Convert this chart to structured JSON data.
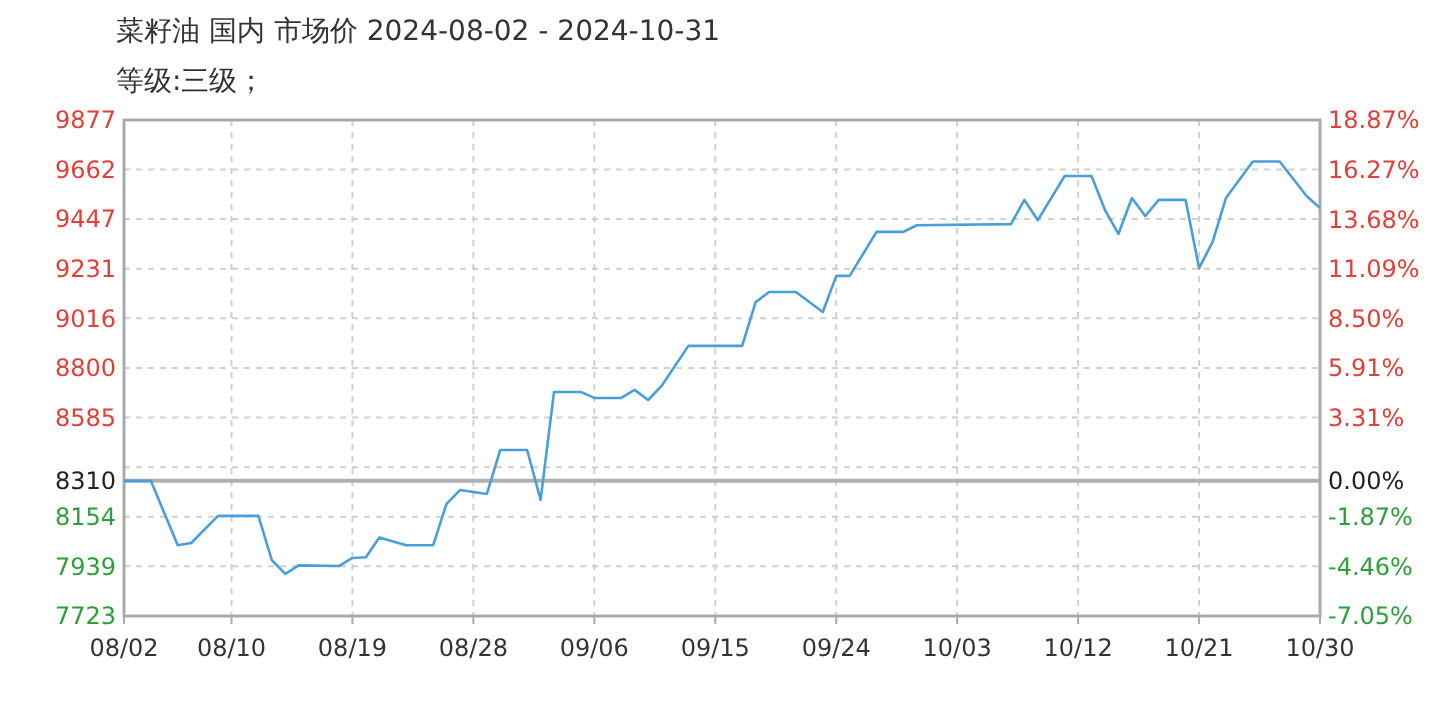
{
  "chart_data": {
    "type": "line",
    "title": "菜籽油 国内 市场价 2024-08-02 - 2024-10-31",
    "subtitle": "等级:三级；",
    "x": [
      "2024-08-02",
      "2024-08-04",
      "2024-08-06",
      "2024-08-07",
      "2024-08-09",
      "2024-08-12",
      "2024-08-13",
      "2024-08-14",
      "2024-08-15",
      "2024-08-18",
      "2024-08-19",
      "2024-08-20",
      "2024-08-21",
      "2024-08-23",
      "2024-08-25",
      "2024-08-26",
      "2024-08-27",
      "2024-08-29",
      "2024-08-30",
      "2024-09-01",
      "2024-09-02",
      "2024-09-03",
      "2024-09-05",
      "2024-09-06",
      "2024-09-08",
      "2024-09-09",
      "2024-09-10",
      "2024-09-11",
      "2024-09-13",
      "2024-09-17",
      "2024-09-18",
      "2024-09-19",
      "2024-09-21",
      "2024-09-23",
      "2024-09-24",
      "2024-09-25",
      "2024-09-27",
      "2024-09-29",
      "2024-09-30",
      "2024-10-07",
      "2024-10-08",
      "2024-10-09",
      "2024-10-11",
      "2024-10-13",
      "2024-10-14",
      "2024-10-15",
      "2024-10-16",
      "2024-10-17",
      "2024-10-18",
      "2024-10-20",
      "2024-10-21",
      "2024-10-22",
      "2024-10-23",
      "2024-10-25",
      "2024-10-27",
      "2024-10-29",
      "2024-10-30"
    ],
    "series": [
      {
        "color": "#4a9fd8",
        "values": [
          8310,
          8310,
          8030,
          8040,
          8158,
          8158,
          7966,
          7906,
          7943,
          7940,
          7975,
          7978,
          8064,
          8030,
          8030,
          8210,
          8270,
          8253,
          8444,
          8444,
          8227,
          8696,
          8696,
          8670,
          8670,
          8705,
          8661,
          8722,
          8896,
          8896,
          9086,
          9130,
          9130,
          9043,
          9200,
          9200,
          9391,
          9391,
          9420,
          9425,
          9530,
          9442,
          9634,
          9634,
          9486,
          9382,
          9538,
          9460,
          9530,
          9530,
          9234,
          9347,
          9538,
          9697,
          9697,
          9547,
          9495
        ]
      }
    ],
    "xlim": [
      "2024-08-02",
      "2024-10-30"
    ],
    "xticks": [
      {
        "value": "2024-08-02",
        "label": "08/02"
      },
      {
        "value": "2024-08-10",
        "label": "08/10"
      },
      {
        "value": "2024-08-19",
        "label": "08/19"
      },
      {
        "value": "2024-08-28",
        "label": "08/28"
      },
      {
        "value": "2024-09-06",
        "label": "09/06"
      },
      {
        "value": "2024-09-15",
        "label": "09/15"
      },
      {
        "value": "2024-09-24",
        "label": "09/24"
      },
      {
        "value": "2024-10-03",
        "label": "10/03"
      },
      {
        "value": "2024-10-12",
        "label": "10/12"
      },
      {
        "value": "2024-10-21",
        "label": "10/21"
      },
      {
        "value": "2024-10-30",
        "label": "10/30"
      }
    ],
    "ylim": [
      7723,
      9877
    ],
    "yticks": [
      7723,
      7939,
      8154,
      8310,
      {
        "value": 8369,
        "label": null
      },
      8585,
      8800,
      9016,
      9231,
      9447,
      9662,
      9877
    ],
    "y2lim": [
      -7.05,
      18.87
    ],
    "y2ticks": [
      {
        "value": -7.05,
        "label": "-7.05%"
      },
      {
        "value": -4.46,
        "label": "-4.46%"
      },
      {
        "value": -1.87,
        "label": "-1.87%"
      },
      {
        "value": 0,
        "label": "0.00%"
      },
      {
        "value": 3.31,
        "label": "3.31%"
      },
      {
        "value": 5.91,
        "label": "5.91%"
      },
      {
        "value": 8.5,
        "label": "8.50%"
      },
      {
        "value": 11.09,
        "label": "11.09%"
      },
      {
        "value": 13.68,
        "label": "13.68%"
      },
      {
        "value": 16.27,
        "label": "16.27%"
      },
      {
        "value": 18.87,
        "label": "18.87%"
      }
    ],
    "ref_lines": [
      {
        "axis": "y",
        "value": 8310,
        "color": "#b0b0b0"
      }
    ],
    "grid": true,
    "marker": "none",
    "line_style": "solid"
  }
}
